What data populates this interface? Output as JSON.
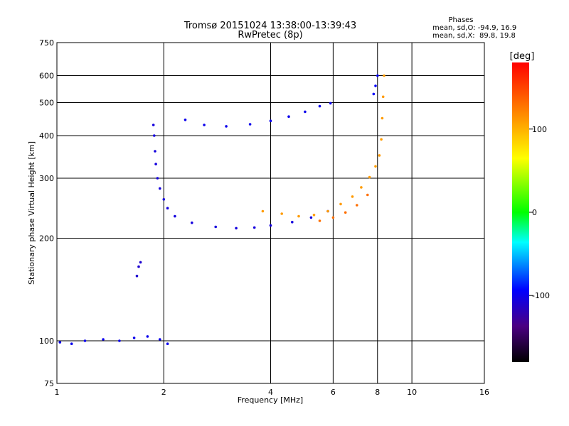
{
  "chart_data": {
    "type": "scatter",
    "title": "Tromsø 20151024 13:38:00-13:39:43",
    "subtitle": "RwPretec (8p)",
    "xlabel": "Frequency [MHz]",
    "ylabel": "Stationary phase Virtual Height [km]",
    "x_scale": "log2",
    "y_scale": "log",
    "xlim": [
      1,
      16
    ],
    "ylim": [
      75,
      750
    ],
    "x_ticks": [
      1,
      2,
      4,
      6,
      8,
      10,
      16
    ],
    "y_ticks": [
      75,
      100,
      200,
      300,
      400,
      500,
      600,
      750
    ],
    "grid": true,
    "colorbar": {
      "label": "[deg]",
      "range": [
        -180,
        180
      ],
      "ticks": [
        100,
        0,
        -100
      ]
    },
    "stats": {
      "heading": "Phases",
      "line_o": "mean, sd,O: -94.9, 16.9",
      "line_x": "mean, sd,X:  89.8, 19.8"
    },
    "traces": [
      {
        "name": "",
        "phase": -100,
        "points": [
          [
            1.02,
            99
          ],
          [
            1.1,
            98
          ],
          [
            1.2,
            100
          ],
          [
            1.35,
            101
          ],
          [
            1.5,
            100
          ],
          [
            1.65,
            102
          ],
          [
            1.8,
            103
          ],
          [
            1.95,
            101
          ],
          [
            2.05,
            98
          ]
        ]
      },
      {
        "name": "",
        "phase": -105,
        "points": [
          [
            1.87,
            430
          ],
          [
            1.88,
            400
          ],
          [
            1.89,
            360
          ],
          [
            1.9,
            330
          ],
          [
            1.92,
            300
          ],
          [
            1.95,
            280
          ],
          [
            2.0,
            260
          ],
          [
            2.05,
            245
          ],
          [
            2.15,
            232
          ],
          [
            2.4,
            222
          ],
          [
            2.8,
            216
          ],
          [
            3.2,
            214
          ],
          [
            3.6,
            215
          ],
          [
            4.0,
            218
          ],
          [
            4.6,
            223
          ],
          [
            5.2,
            230
          ],
          [
            5.8,
            240
          ]
        ]
      },
      {
        "name": "",
        "phase": -100,
        "points": [
          [
            2.3,
            445
          ],
          [
            2.6,
            430
          ],
          [
            3.0,
            426
          ],
          [
            3.5,
            432
          ],
          [
            4.0,
            442
          ],
          [
            4.5,
            455
          ],
          [
            5.0,
            470
          ],
          [
            5.5,
            488
          ],
          [
            5.9,
            498
          ]
        ]
      },
      {
        "name": "",
        "phase": -95,
        "points": [
          [
            7.8,
            530
          ],
          [
            7.9,
            560
          ],
          [
            8.0,
            600
          ]
        ]
      },
      {
        "name": "",
        "phase": 110,
        "points": [
          [
            3.8,
            240
          ],
          [
            4.3,
            236
          ],
          [
            4.8,
            232
          ],
          [
            5.3,
            234
          ],
          [
            5.8,
            240
          ],
          [
            6.3,
            252
          ],
          [
            6.8,
            265
          ],
          [
            7.2,
            282
          ],
          [
            7.6,
            302
          ],
          [
            7.9,
            325
          ],
          [
            8.1,
            350
          ],
          [
            8.2,
            390
          ],
          [
            8.25,
            450
          ],
          [
            8.3,
            520
          ],
          [
            8.35,
            600
          ]
        ]
      },
      {
        "name": "",
        "phase": 130,
        "points": [
          [
            5.5,
            225
          ],
          [
            6.0,
            230
          ],
          [
            6.5,
            238
          ],
          [
            7.0,
            250
          ],
          [
            7.5,
            268
          ]
        ]
      },
      {
        "name": "",
        "phase": -110,
        "points": [
          [
            1.68,
            155
          ],
          [
            1.7,
            165
          ],
          [
            1.72,
            170
          ]
        ]
      }
    ]
  }
}
